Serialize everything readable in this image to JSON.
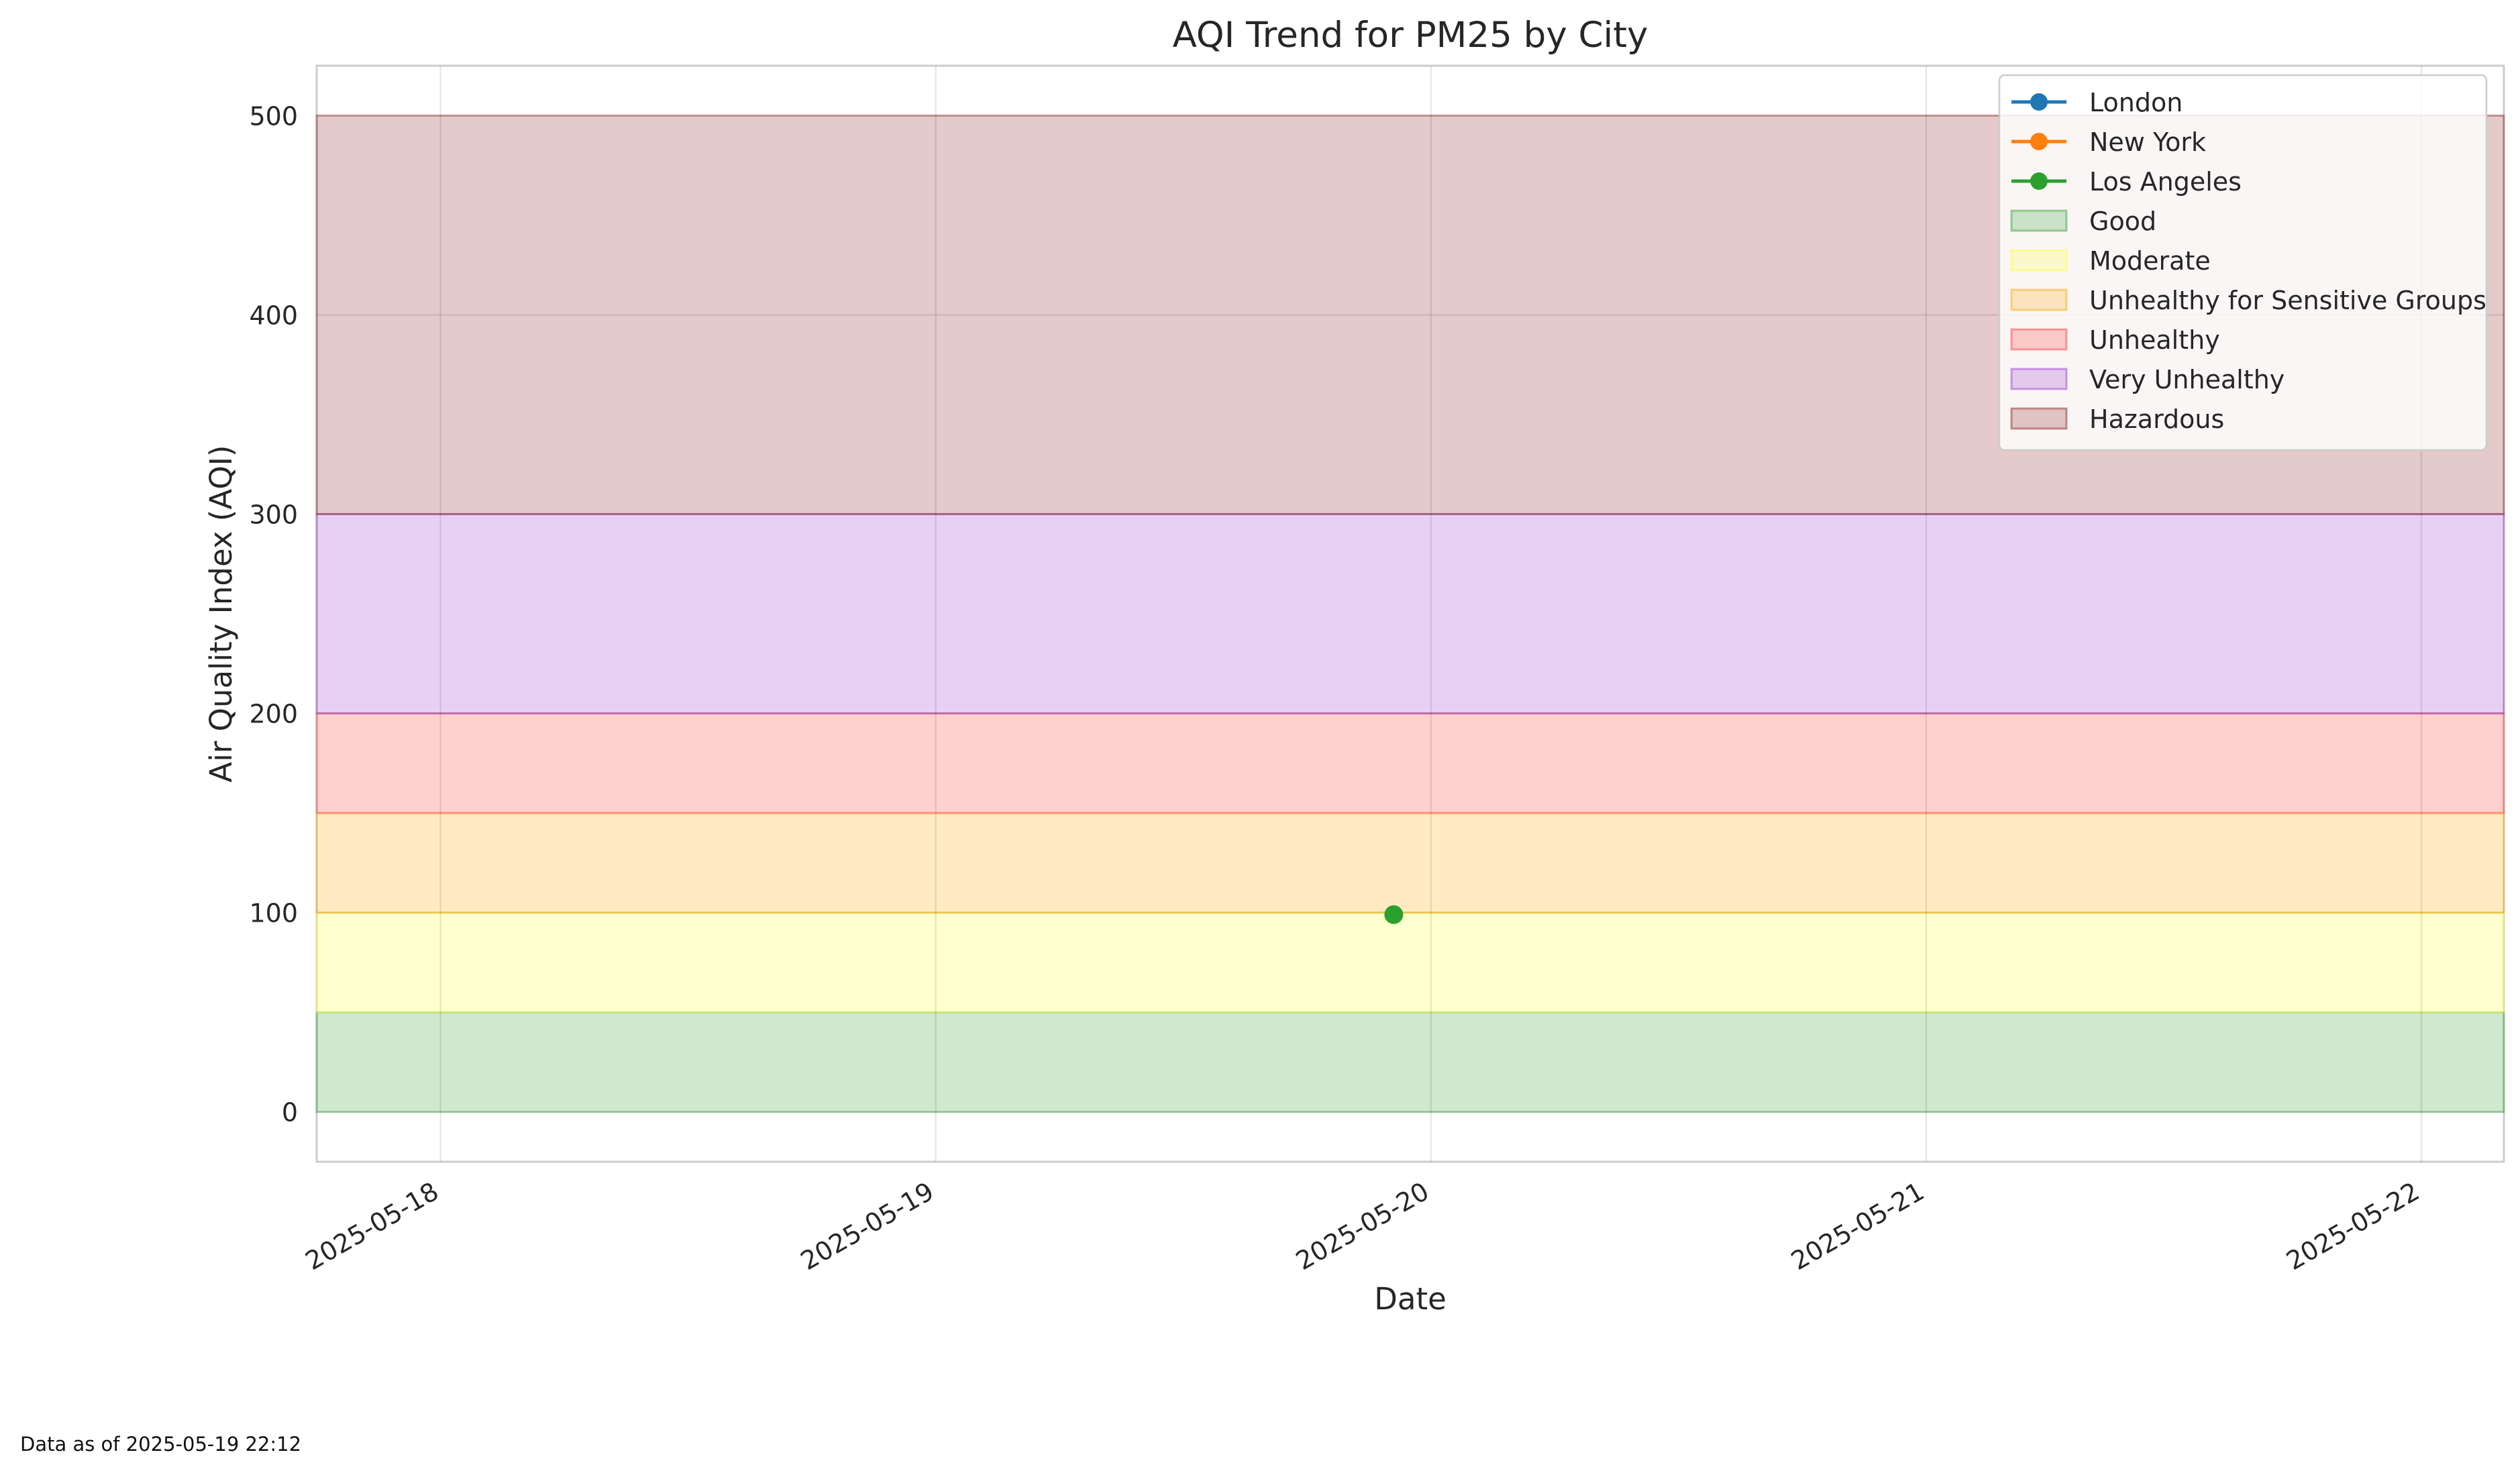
{
  "chart_data": {
    "type": "scatter",
    "title": "AQI Trend for PM25 by City",
    "xlabel": "Date",
    "ylabel": "Air Quality Index (AQI)",
    "x_ticks": [
      "2025-05-18",
      "2025-05-19",
      "2025-05-20",
      "2025-05-21",
      "2025-05-22"
    ],
    "xlim": [
      "2025-05-17 18:00",
      "2025-05-22 04:00"
    ],
    "y_ticks": [
      0,
      100,
      200,
      300,
      400,
      500
    ],
    "ylim": [
      -25,
      525
    ],
    "grid": true,
    "legend_placement": "top-right",
    "series": [
      {
        "name": "London",
        "color": "#1f77b4",
        "points": []
      },
      {
        "name": "New York",
        "color": "#ff7f0e",
        "points": []
      },
      {
        "name": "Los Angeles",
        "color": "#2ca02c",
        "points": [
          {
            "x": "2025-05-19 22:12",
            "y": 99
          }
        ]
      }
    ],
    "bands": [
      {
        "name": "Good",
        "from": 0,
        "to": 50,
        "color": "#2ca02c"
      },
      {
        "name": "Moderate",
        "from": 50,
        "to": 100,
        "color": "#ffff33"
      },
      {
        "name": "Unhealthy for Sensitive Groups",
        "from": 100,
        "to": 150,
        "color": "#ffa500"
      },
      {
        "name": "Unhealthy",
        "from": 150,
        "to": 200,
        "color": "#ff3333"
      },
      {
        "name": "Very Unhealthy",
        "from": 200,
        "to": 300,
        "color": "#9932cc"
      },
      {
        "name": "Hazardous",
        "from": 300,
        "to": 500,
        "color": "#8b1a1a"
      }
    ]
  },
  "footnote": "Data as of 2025-05-19 22:12"
}
